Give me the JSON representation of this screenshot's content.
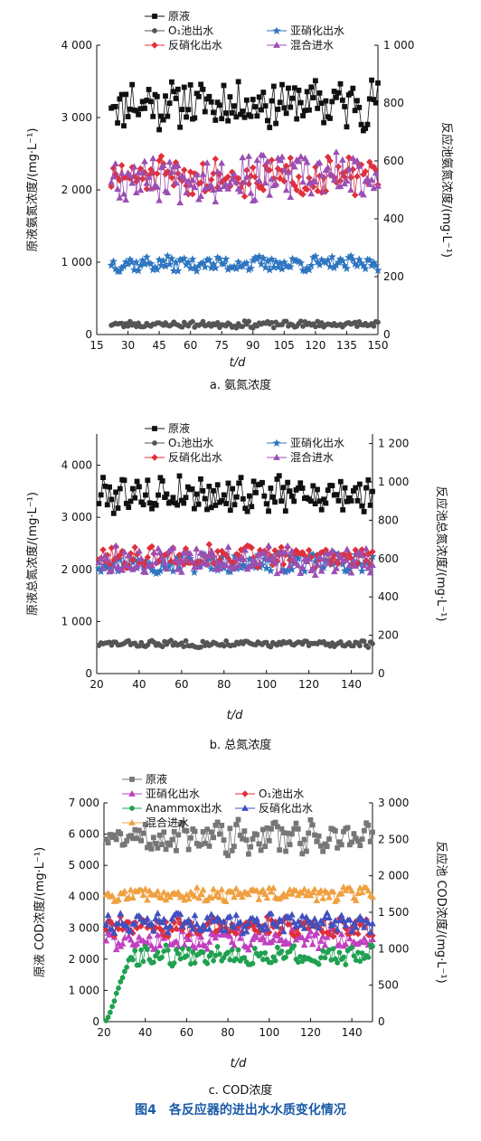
{
  "figure_title": "图4　各反应器的进出水水质变化情况",
  "chart_data": [
    {
      "type": "line",
      "caption": "a. 氨氮浓度",
      "xlabel": "t/d",
      "ylabel_left": "原液氨氮浓度/(mg·L⁻¹)",
      "ylabel_right": "反应池氨氮浓度/(mg·L⁻¹)",
      "xlim": [
        15,
        150
      ],
      "xticks": [
        15,
        30,
        45,
        60,
        75,
        90,
        105,
        120,
        135,
        150
      ],
      "ylim_left": [
        0,
        4000
      ],
      "yticks_left": [
        0,
        1000,
        2000,
        3000,
        4000
      ],
      "yticklabels_left": [
        "0",
        "1 000",
        "2 000",
        "3 000",
        "4 000"
      ],
      "ylim_right": [
        0,
        1000
      ],
      "yticks_right": [
        0,
        200,
        400,
        600,
        800,
        1000
      ],
      "yticklabels_right": [
        "0",
        "200",
        "400",
        "600",
        "800",
        "1 000"
      ],
      "x_start": 22,
      "x_end": 150,
      "series": [
        {
          "name": "原液",
          "axis": "left",
          "color": "#111111",
          "marker": "square",
          "mean": 3200,
          "amp": 300,
          "seed": 11
        },
        {
          "name": "O₁池出水",
          "axis": "right",
          "color": "#555555",
          "marker": "circle",
          "mean": 35,
          "amp": 10,
          "seed": 23,
          "no_line": true
        },
        {
          "name": "亚硝化出水",
          "axis": "right",
          "color": "#2e75c0",
          "marker": "star",
          "mean": 245,
          "amp": 22,
          "seed": 37
        },
        {
          "name": "反硝化出水",
          "axis": "right",
          "color": "#e0303a",
          "marker": "diamond",
          "mean": 545,
          "amp": 55,
          "seed": 51
        },
        {
          "name": "混合进水",
          "axis": "right",
          "color": "#9b4fb3",
          "marker": "triangle",
          "mean": 545,
          "amp": 70,
          "seed": 67
        }
      ],
      "legend": [
        {
          "name": "原液",
          "color": "#111111",
          "marker": "square"
        },
        {
          "name": "O₁池出水",
          "color": "#555555",
          "marker": "circle"
        },
        {
          "name": "亚硝化出水",
          "color": "#2e75c0",
          "marker": "star"
        },
        {
          "name": "反硝化出水",
          "color": "#e0303a",
          "marker": "diamond"
        },
        {
          "name": "混合进水",
          "color": "#9b4fb3",
          "marker": "triangle"
        }
      ]
    },
    {
      "type": "line",
      "caption": "b. 总氮浓度",
      "xlabel": "t/d",
      "ylabel_left": "原液总氮浓度/(mg·L⁻¹)",
      "ylabel_right": "反应池总氮浓度/(mg·L⁻¹)",
      "xlim": [
        20,
        150
      ],
      "xticks": [
        20,
        40,
        60,
        80,
        100,
        120,
        140
      ],
      "ylim_left": [
        0,
        4600
      ],
      "yticks_left": [
        0,
        1000,
        2000,
        3000,
        4000
      ],
      "yticklabels_left": [
        "0",
        "1 000",
        "2 000",
        "3 000",
        "4 000"
      ],
      "ylim_right": [
        0,
        1250
      ],
      "yticks_right": [
        0,
        200,
        400,
        600,
        800,
        1000,
        1200
      ],
      "yticklabels_right": [
        "0",
        "200",
        "400",
        "600",
        "800",
        "1 000",
        "1 200"
      ],
      "x_start": 21,
      "x_end": 150,
      "series": [
        {
          "name": "原液",
          "axis": "left",
          "color": "#111111",
          "marker": "square",
          "mean": 3450,
          "amp": 300,
          "seed": 79
        },
        {
          "name": "O₁池出水",
          "axis": "right",
          "color": "#555555",
          "marker": "circle",
          "mean": 155,
          "amp": 15,
          "seed": 83,
          "no_line": true
        },
        {
          "name": "亚硝化出水",
          "axis": "right",
          "color": "#2e75c0",
          "marker": "star",
          "mean": 580,
          "amp": 45,
          "seed": 97
        },
        {
          "name": "反硝化出水",
          "axis": "right",
          "color": "#e0303a",
          "marker": "diamond",
          "mean": 610,
          "amp": 50,
          "seed": 101
        },
        {
          "name": "混合进水",
          "axis": "right",
          "color": "#9b4fb3",
          "marker": "triangle",
          "mean": 590,
          "amp": 60,
          "seed": 113
        }
      ],
      "legend": [
        {
          "name": "原液",
          "color": "#111111",
          "marker": "square"
        },
        {
          "name": "O₁池出水",
          "color": "#555555",
          "marker": "circle"
        },
        {
          "name": "亚硝化出水",
          "color": "#2e75c0",
          "marker": "star"
        },
        {
          "name": "反硝化出水",
          "color": "#e0303a",
          "marker": "diamond"
        },
        {
          "name": "混合进水",
          "color": "#9b4fb3",
          "marker": "triangle"
        }
      ]
    },
    {
      "type": "line",
      "caption": "c. COD浓度",
      "xlabel": "t/d",
      "ylabel_left": "原液 COD浓度/(mg·L⁻¹)",
      "ylabel_right": "反应池 COD浓度/(mg·L⁻¹)",
      "xlim": [
        20,
        150
      ],
      "xticks": [
        20,
        40,
        60,
        80,
        100,
        120,
        140
      ],
      "ylim_left": [
        0,
        7000
      ],
      "yticks_left": [
        0,
        1000,
        2000,
        3000,
        4000,
        5000,
        6000,
        7000
      ],
      "yticklabels_left": [
        "0",
        "1 000",
        "2 000",
        "3 000",
        "4 000",
        "5 000",
        "6 000",
        "7 000"
      ],
      "ylim_right": [
        0,
        3000
      ],
      "yticks_right": [
        0,
        500,
        1000,
        1500,
        2000,
        2500,
        3000
      ],
      "yticklabels_right": [
        "0",
        "500",
        "1 000",
        "1 500",
        "2 000",
        "2 500",
        "3 000"
      ],
      "x_start": 21,
      "x_end": 150,
      "series": [
        {
          "name": "原液",
          "axis": "left",
          "color": "#777777",
          "marker": "square",
          "mean": 5900,
          "amp": 450,
          "seed": 131
        },
        {
          "name": "亚硝化出水",
          "axis": "right",
          "color": "#c040c0",
          "marker": "triangle",
          "mean": 1130,
          "amp": 120,
          "seed": 137
        },
        {
          "name": "O₁池出水",
          "axis": "right",
          "color": "#e0303a",
          "marker": "diamond",
          "mean": 1300,
          "amp": 110,
          "seed": 139
        },
        {
          "name": "Anammox出水",
          "axis": "right",
          "color": "#20a050",
          "marker": "circle",
          "mean": 900,
          "amp": 120,
          "seed": 149,
          "ramp": {
            "x0": 21,
            "x1": 33,
            "y0": 0
          }
        },
        {
          "name": "反硝化出水",
          "axis": "right",
          "color": "#4050c0",
          "marker": "triangle",
          "mean": 1350,
          "amp": 110,
          "seed": 151
        },
        {
          "name": "混合进水",
          "axis": "right",
          "color": "#f0a040",
          "marker": "triangle",
          "mean": 1750,
          "amp": 80,
          "seed": 157
        }
      ],
      "legend": [
        {
          "name": "原液",
          "color": "#777777",
          "marker": "square"
        },
        {
          "name": "亚硝化出水",
          "color": "#c040c0",
          "marker": "triangle"
        },
        {
          "name": "O₁池出水",
          "color": "#e0303a",
          "marker": "diamond"
        },
        {
          "name": "Anammox出水",
          "color": "#20a050",
          "marker": "circle"
        },
        {
          "name": "反硝化出水",
          "color": "#4050c0",
          "marker": "triangle"
        },
        {
          "name": "混合进水",
          "color": "#f0a040",
          "marker": "triangle"
        }
      ]
    }
  ]
}
